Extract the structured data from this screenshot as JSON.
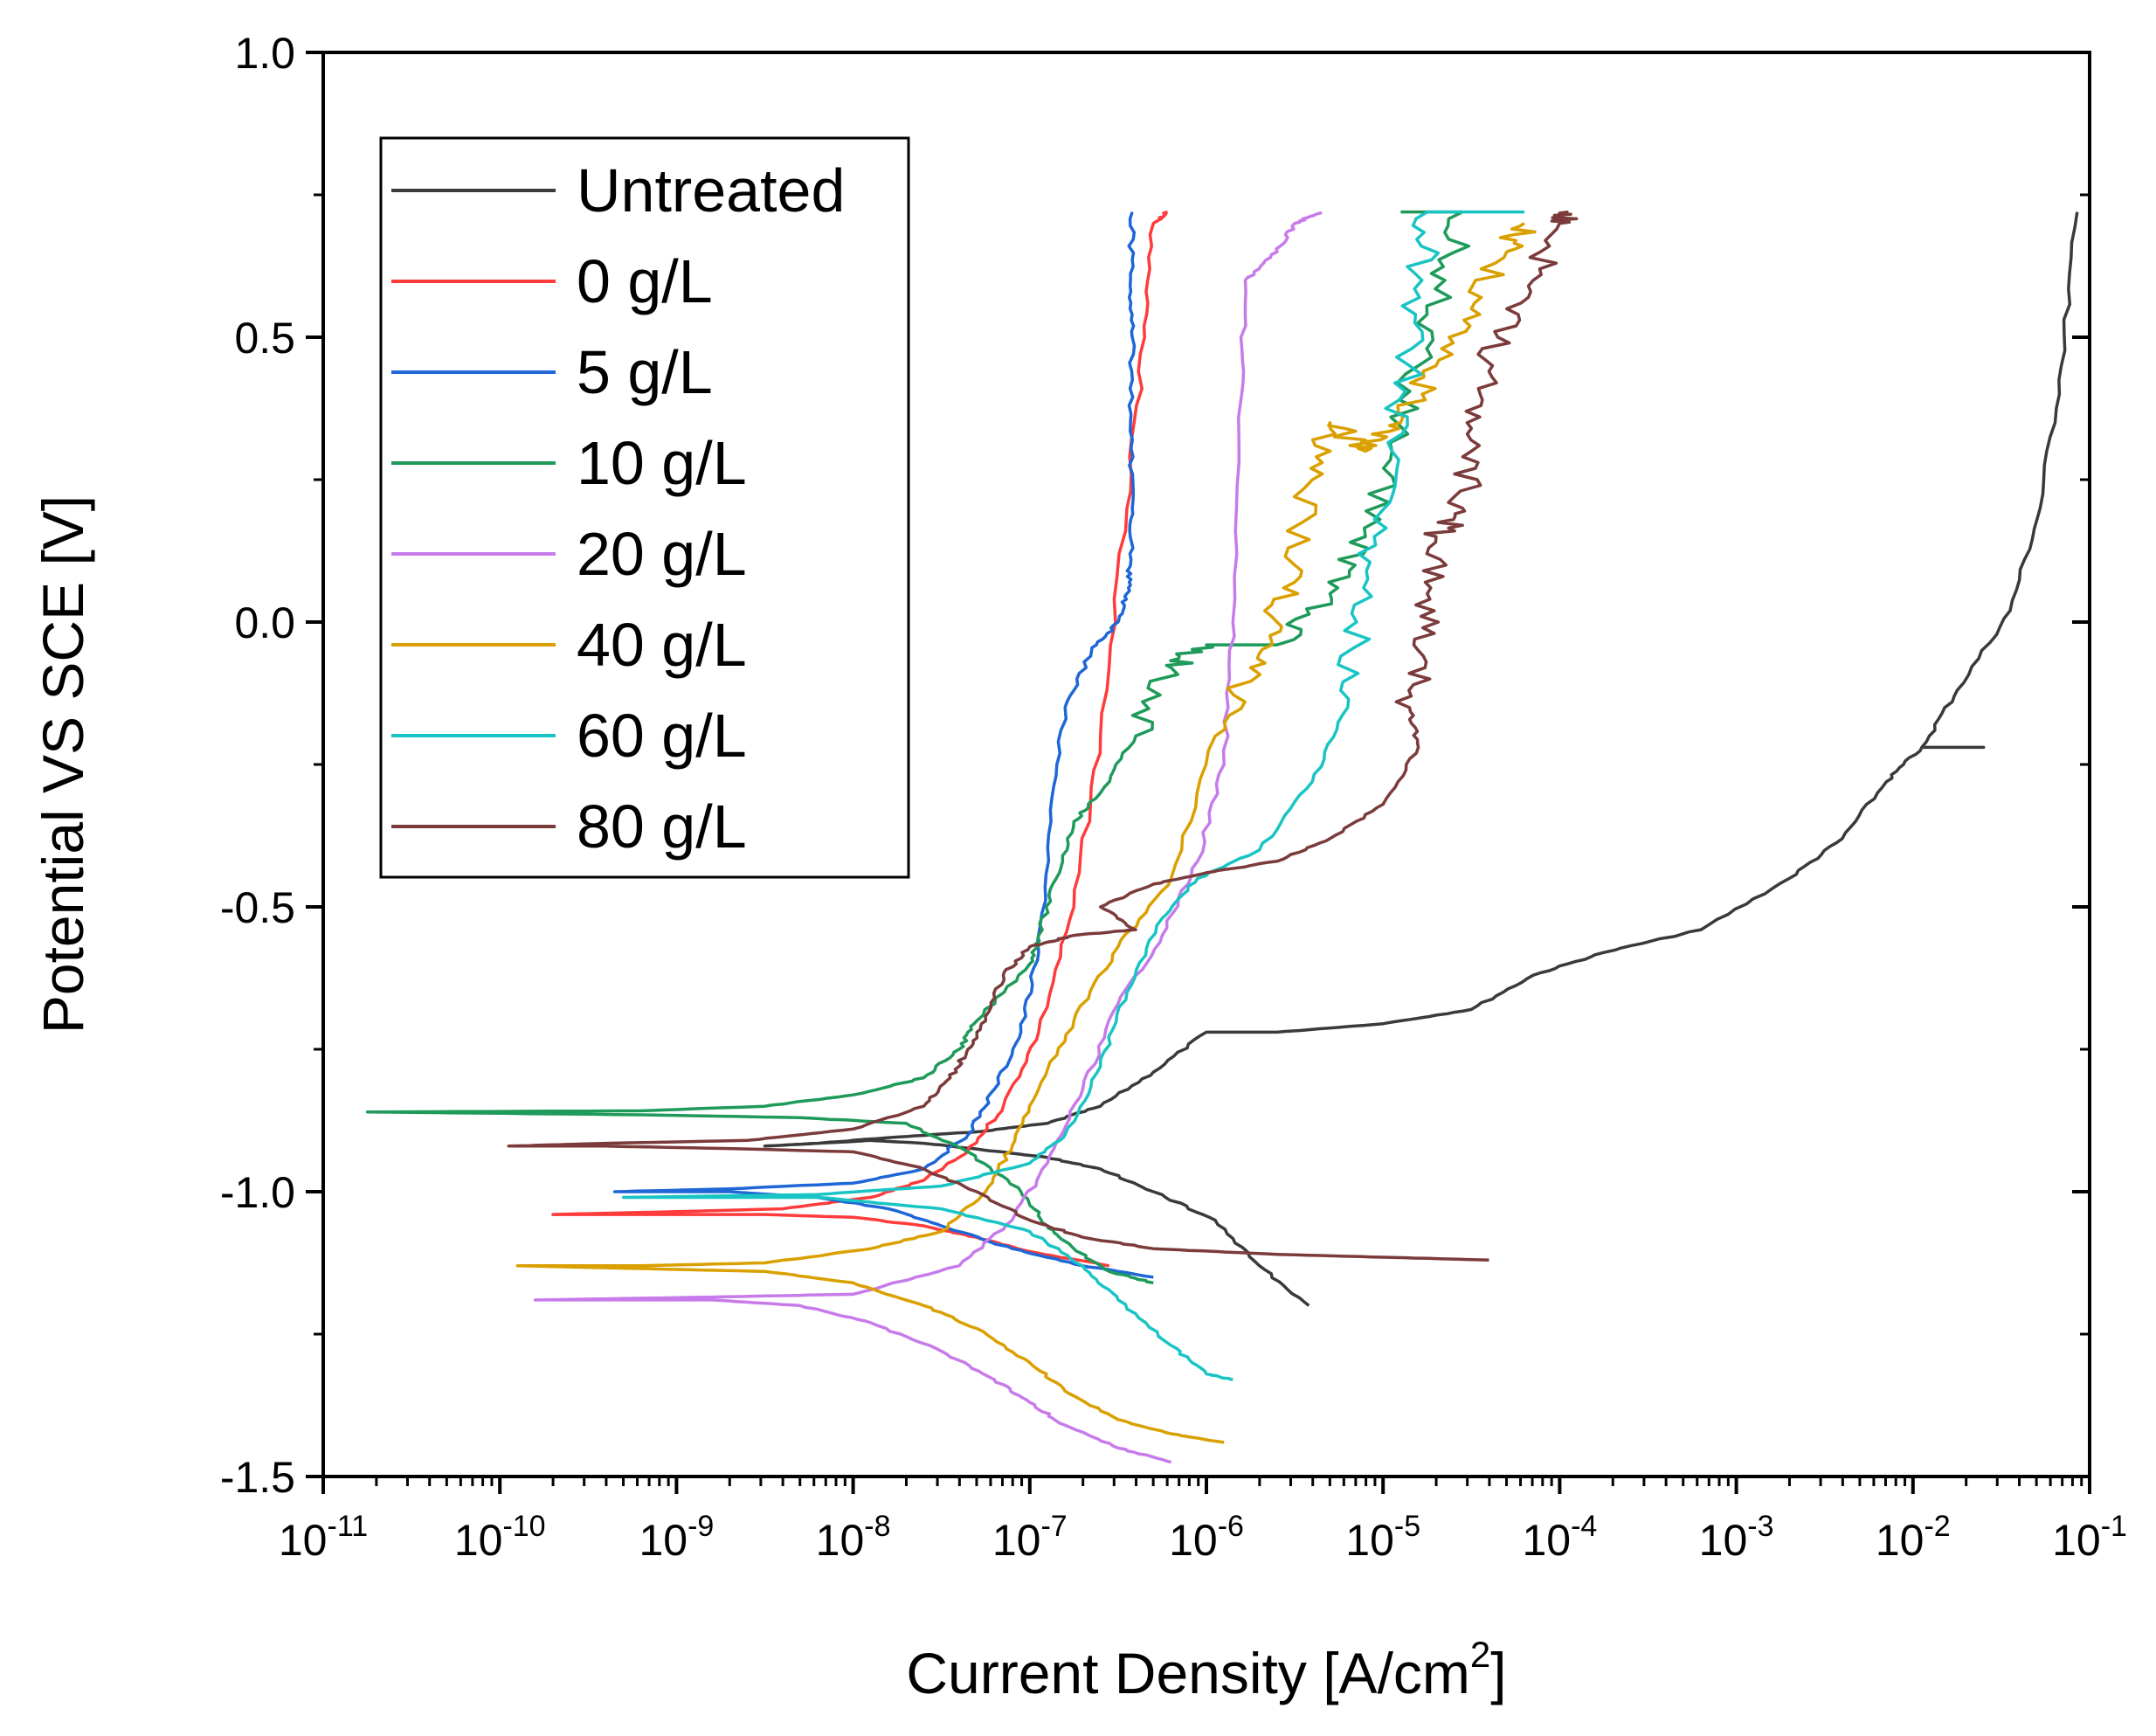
{
  "chart_data": {
    "type": "line",
    "title": "",
    "xlabel": "Current Density [A/cm",
    "xlabel_sup": "2",
    "xlabel_end": "]",
    "ylabel": "Potential VS SCE [V]",
    "xscale": "log",
    "xlim_exp": [
      -11,
      -1
    ],
    "ylim": [
      -1.5,
      1.0
    ],
    "x_tick_exponents": [
      -11,
      -10,
      -9,
      -8,
      -7,
      -6,
      -5,
      -4,
      -3,
      -2,
      -1
    ],
    "x_tick_base": "10",
    "y_ticks": [
      "-1.5",
      "-1.0",
      "-0.5",
      "0.0",
      "0.5",
      "1.0"
    ],
    "legend_position": "top-left",
    "series": [
      {
        "name": "Untreated",
        "color": "#3a3a3a",
        "points": [
          [
            -5.42,
            -1.2
          ],
          [
            -5.7,
            -1.13
          ],
          [
            -5.95,
            -1.05
          ],
          [
            -6.3,
            -1.0
          ],
          [
            -6.6,
            -0.96
          ],
          [
            -6.9,
            -0.94
          ],
          [
            -7.3,
            -0.925
          ],
          [
            -7.6,
            -0.915
          ],
          [
            -7.9,
            -0.91
          ],
          [
            -8.2,
            -0.915
          ],
          [
            -8.5,
            -0.92
          ],
          [
            -8.2,
            -0.915
          ],
          [
            -7.8,
            -0.905
          ],
          [
            -7.3,
            -0.895
          ],
          [
            -6.9,
            -0.88
          ],
          [
            -6.6,
            -0.85
          ],
          [
            -6.3,
            -0.79
          ],
          [
            -6.0,
            -0.72
          ],
          [
            -5.6,
            -0.72
          ],
          [
            -5.0,
            -0.705
          ],
          [
            -4.5,
            -0.68
          ],
          [
            -4.15,
            -0.62
          ],
          [
            -3.75,
            -0.58
          ],
          [
            -3.2,
            -0.54
          ],
          [
            -2.7,
            -0.45
          ],
          [
            -2.4,
            -0.38
          ],
          [
            -2.15,
            -0.28
          ],
          [
            -1.95,
            -0.22
          ],
          [
            -1.6,
            -0.22
          ],
          [
            -1.95,
            -0.22
          ],
          [
            -1.75,
            -0.12
          ],
          [
            -1.45,
            0.02
          ],
          [
            -1.28,
            0.2
          ],
          [
            -1.16,
            0.45
          ],
          [
            -1.07,
            0.72
          ]
        ]
      },
      {
        "name": "0 g/L",
        "color": "#ff3b3b",
        "points": [
          [
            -6.55,
            -1.13
          ],
          [
            -7.0,
            -1.105
          ],
          [
            -7.3,
            -1.08
          ],
          [
            -7.6,
            -1.06
          ],
          [
            -8.0,
            -1.045
          ],
          [
            -8.5,
            -1.04
          ],
          [
            -9.0,
            -1.04
          ],
          [
            -9.7,
            -1.04
          ],
          [
            -9.0,
            -1.035
          ],
          [
            -8.4,
            -1.03
          ],
          [
            -7.9,
            -1.01
          ],
          [
            -7.6,
            -0.98
          ],
          [
            -7.35,
            -0.93
          ],
          [
            -7.15,
            -0.85
          ],
          [
            -6.95,
            -0.72
          ],
          [
            -6.75,
            -0.5
          ],
          [
            -6.6,
            -0.2
          ],
          [
            -6.45,
            0.2
          ],
          [
            -6.35,
            0.5
          ],
          [
            -6.3,
            0.7
          ],
          [
            -6.22,
            0.72
          ]
        ]
      },
      {
        "name": "5 g/L",
        "color": "#1f66d6",
        "points": [
          [
            -6.3,
            -1.15
          ],
          [
            -6.7,
            -1.13
          ],
          [
            -7.1,
            -1.1
          ],
          [
            -7.5,
            -1.06
          ],
          [
            -7.8,
            -1.03
          ],
          [
            -8.2,
            -1.01
          ],
          [
            -8.7,
            -1.0
          ],
          [
            -9.35,
            -1.0
          ],
          [
            -8.7,
            -0.995
          ],
          [
            -8.0,
            -0.985
          ],
          [
            -7.6,
            -0.96
          ],
          [
            -7.35,
            -0.9
          ],
          [
            -7.2,
            -0.82
          ],
          [
            -7.05,
            -0.72
          ],
          [
            -6.95,
            -0.58
          ],
          [
            -6.88,
            -0.35
          ],
          [
            -6.8,
            -0.15
          ],
          [
            -6.65,
            -0.05
          ],
          [
            -6.5,
            0.0
          ],
          [
            -6.45,
            0.05
          ],
          [
            -6.43,
            0.1
          ],
          [
            -6.42,
            0.2
          ],
          [
            -6.43,
            0.35
          ],
          [
            -6.42,
            0.5
          ],
          [
            -6.43,
            0.6
          ],
          [
            -6.42,
            0.72
          ]
        ]
      },
      {
        "name": "10 g/L",
        "color": "#1e9a5a",
        "points": [
          [
            -6.3,
            -1.16
          ],
          [
            -6.55,
            -1.14
          ],
          [
            -6.75,
            -1.1
          ],
          [
            -6.9,
            -1.06
          ],
          [
            -7.05,
            -1.0
          ],
          [
            -7.35,
            -0.93
          ],
          [
            -7.7,
            -0.88
          ],
          [
            -8.3,
            -0.87
          ],
          [
            -9.2,
            -0.865
          ],
          [
            -10.75,
            -0.86
          ],
          [
            -9.2,
            -0.858
          ],
          [
            -8.5,
            -0.85
          ],
          [
            -8.0,
            -0.83
          ],
          [
            -7.6,
            -0.8
          ],
          [
            -7.4,
            -0.75
          ],
          [
            -7.3,
            -0.7
          ],
          [
            -7.0,
            -0.6
          ],
          [
            -6.95,
            -0.55
          ],
          [
            -6.85,
            -0.45
          ],
          [
            -6.75,
            -0.35
          ],
          [
            -6.6,
            -0.3
          ],
          [
            -6.4,
            -0.2
          ],
          [
            -6.2,
            -0.08
          ],
          [
            -6.0,
            -0.04
          ],
          [
            -5.6,
            -0.04
          ],
          [
            -5.3,
            0.05
          ],
          [
            -5.1,
            0.15
          ],
          [
            -4.95,
            0.3
          ],
          [
            -4.8,
            0.45
          ],
          [
            -4.65,
            0.6
          ],
          [
            -4.55,
            0.72
          ],
          [
            -4.9,
            0.72
          ]
        ]
      },
      {
        "name": "20 g/L",
        "color": "#c77bea",
        "points": [
          [
            -6.2,
            -1.475
          ],
          [
            -6.5,
            -1.45
          ],
          [
            -6.8,
            -1.41
          ],
          [
            -7.0,
            -1.37
          ],
          [
            -7.2,
            -1.33
          ],
          [
            -7.5,
            -1.28
          ],
          [
            -7.9,
            -1.23
          ],
          [
            -8.3,
            -1.2
          ],
          [
            -8.8,
            -1.19
          ],
          [
            -9.8,
            -1.19
          ],
          [
            -8.8,
            -1.185
          ],
          [
            -8.0,
            -1.18
          ],
          [
            -7.4,
            -1.13
          ],
          [
            -7.1,
            -1.05
          ],
          [
            -6.9,
            -0.95
          ],
          [
            -6.7,
            -0.82
          ],
          [
            -6.5,
            -0.67
          ],
          [
            -6.25,
            -0.55
          ],
          [
            -6.05,
            -0.42
          ],
          [
            -5.9,
            -0.25
          ],
          [
            -5.85,
            0.0
          ],
          [
            -5.8,
            0.4
          ],
          [
            -5.78,
            0.6
          ],
          [
            -5.6,
            0.65
          ],
          [
            -5.5,
            0.7
          ],
          [
            -5.35,
            0.72
          ]
        ]
      },
      {
        "name": "40 g/L",
        "color": "#d9a000",
        "points": [
          [
            -5.9,
            -1.44
          ],
          [
            -6.2,
            -1.425
          ],
          [
            -6.5,
            -1.4
          ],
          [
            -6.8,
            -1.35
          ],
          [
            -7.0,
            -1.3
          ],
          [
            -7.3,
            -1.24
          ],
          [
            -7.6,
            -1.2
          ],
          [
            -8.0,
            -1.16
          ],
          [
            -8.5,
            -1.14
          ],
          [
            -9.2,
            -1.135
          ],
          [
            -9.9,
            -1.13
          ],
          [
            -9.2,
            -1.13
          ],
          [
            -8.5,
            -1.125
          ],
          [
            -7.9,
            -1.1
          ],
          [
            -7.5,
            -1.07
          ],
          [
            -7.25,
            -1.0
          ],
          [
            -7.1,
            -0.92
          ],
          [
            -6.95,
            -0.82
          ],
          [
            -6.75,
            -0.7
          ],
          [
            -6.5,
            -0.57
          ],
          [
            -6.2,
            -0.45
          ],
          [
            -5.95,
            -0.2
          ],
          [
            -5.75,
            -0.08
          ],
          [
            -5.6,
            0.0
          ],
          [
            -5.5,
            0.1
          ],
          [
            -5.4,
            0.25
          ],
          [
            -5.3,
            0.35
          ],
          [
            -5.1,
            0.3
          ],
          [
            -4.9,
            0.35
          ],
          [
            -4.7,
            0.45
          ],
          [
            -4.5,
            0.55
          ],
          [
            -4.3,
            0.65
          ],
          [
            -4.2,
            0.7
          ]
        ]
      },
      {
        "name": "60 g/L",
        "color": "#19c4c4",
        "points": [
          [
            -5.85,
            -1.33
          ],
          [
            -6.0,
            -1.32
          ],
          [
            -6.2,
            -1.27
          ],
          [
            -6.5,
            -1.19
          ],
          [
            -6.7,
            -1.13
          ],
          [
            -7.0,
            -1.07
          ],
          [
            -7.5,
            -1.03
          ],
          [
            -8.2,
            -1.01
          ],
          [
            -9.3,
            -1.01
          ],
          [
            -8.2,
            -1.005
          ],
          [
            -7.5,
            -0.99
          ],
          [
            -7.0,
            -0.95
          ],
          [
            -6.8,
            -0.9
          ],
          [
            -6.6,
            -0.78
          ],
          [
            -6.45,
            -0.65
          ],
          [
            -6.25,
            -0.52
          ],
          [
            -6.05,
            -0.45
          ],
          [
            -5.7,
            -0.4
          ],
          [
            -5.4,
            -0.28
          ],
          [
            -5.2,
            -0.15
          ],
          [
            -5.15,
            0.0
          ],
          [
            -5.05,
            0.15
          ],
          [
            -4.95,
            0.3
          ],
          [
            -4.85,
            0.45
          ],
          [
            -4.78,
            0.6
          ],
          [
            -4.75,
            0.72
          ],
          [
            -4.2,
            0.72
          ]
        ]
      },
      {
        "name": "80 g/L",
        "color": "#7b3b3b",
        "points": [
          [
            -4.4,
            -1.12
          ],
          [
            -5.0,
            -1.115
          ],
          [
            -5.6,
            -1.11
          ],
          [
            -6.3,
            -1.1
          ],
          [
            -6.7,
            -1.08
          ],
          [
            -7.0,
            -1.05
          ],
          [
            -7.3,
            -1.0
          ],
          [
            -7.6,
            -0.96
          ],
          [
            -8.0,
            -0.93
          ],
          [
            -8.6,
            -0.925
          ],
          [
            -9.4,
            -0.92
          ],
          [
            -9.95,
            -0.92
          ],
          [
            -9.4,
            -0.915
          ],
          [
            -8.6,
            -0.91
          ],
          [
            -8.0,
            -0.89
          ],
          [
            -7.6,
            -0.85
          ],
          [
            -7.45,
            -0.8
          ],
          [
            -7.35,
            -0.75
          ],
          [
            -7.25,
            -0.7
          ],
          [
            -7.15,
            -0.62
          ],
          [
            -7.0,
            -0.57
          ],
          [
            -6.75,
            -0.55
          ],
          [
            -6.4,
            -0.54
          ],
          [
            -6.6,
            -0.5
          ],
          [
            -6.3,
            -0.46
          ],
          [
            -6.0,
            -0.44
          ],
          [
            -5.6,
            -0.42
          ],
          [
            -5.3,
            -0.38
          ],
          [
            -5.0,
            -0.32
          ],
          [
            -4.8,
            -0.22
          ],
          [
            -4.85,
            -0.15
          ],
          [
            -4.8,
            -0.05
          ],
          [
            -4.75,
            0.05
          ],
          [
            -4.7,
            0.15
          ],
          [
            -4.55,
            0.2
          ],
          [
            -4.5,
            0.3
          ],
          [
            -4.45,
            0.4
          ],
          [
            -4.35,
            0.5
          ],
          [
            -4.15,
            0.6
          ],
          [
            -4.0,
            0.7
          ],
          [
            -3.95,
            0.72
          ]
        ]
      }
    ]
  }
}
